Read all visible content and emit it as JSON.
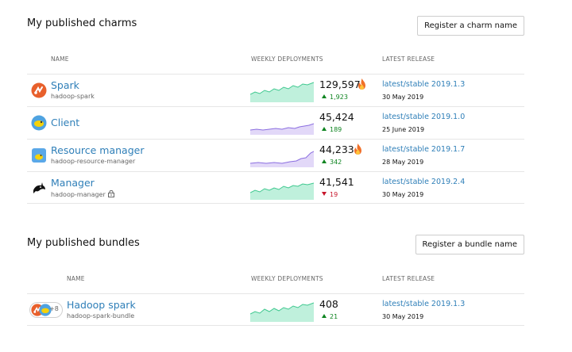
{
  "charms": {
    "title": "My published charms",
    "register_label": "Register a charm name",
    "columns": {
      "name": "NAME",
      "deployments": "WEEKLY DEPLOYMENTS",
      "release": "LATEST RELEASE"
    },
    "rows": [
      {
        "icon": "spark-icon",
        "name": "Spark",
        "package": "hadoop-spark",
        "count": "129,597",
        "hot": true,
        "trend": "up",
        "delta": "1,923",
        "release": "latest/stable 2019.1.3",
        "date": "30 May 2019",
        "spark_color": "green"
      },
      {
        "icon": "client-icon",
        "name": "Client",
        "package": "",
        "count": "45,424",
        "hot": false,
        "trend": "up",
        "delta": "189",
        "release": "latest/stable 2019.1.0",
        "date": "25 June 2019",
        "spark_color": "purple"
      },
      {
        "icon": "resource-manager-icon",
        "name": "Resource manager",
        "package": "hadoop-resource-manager",
        "count": "44,233",
        "hot": true,
        "trend": "up",
        "delta": "342",
        "release": "latest/stable 2019.1.7",
        "date": "28 May 2019",
        "spark_color": "purple"
      },
      {
        "icon": "orca-icon",
        "name": "Manager",
        "package": "hadoop-manager",
        "private": true,
        "count": "41,541",
        "hot": false,
        "trend": "down",
        "delta": "19",
        "release": "latest/stable 2019.2.4",
        "date": "30 May 2019",
        "spark_color": "green"
      }
    ]
  },
  "bundles": {
    "title": "My published bundles",
    "register_label": "Register a bundle name",
    "columns": {
      "name": "NAME",
      "deployments": "WEEKLY DEPLOYMENTS",
      "release": "LATEST RELEASE"
    },
    "rows": [
      {
        "icon": "spark-icon",
        "more": "+8",
        "name": "Hadoop spark",
        "package": "hadoop-spark-bundle",
        "count": "408",
        "trend": "up",
        "delta": "21",
        "release": "latest/stable 2019.1.3",
        "date": "30 May 2019",
        "spark_color": "green"
      }
    ]
  },
  "colors": {
    "link": "#2f7fb8",
    "up": "#0e8420",
    "down": "#c7162b",
    "spark_green": "#5fd3a8",
    "spark_purple": "#8b6ee0"
  }
}
